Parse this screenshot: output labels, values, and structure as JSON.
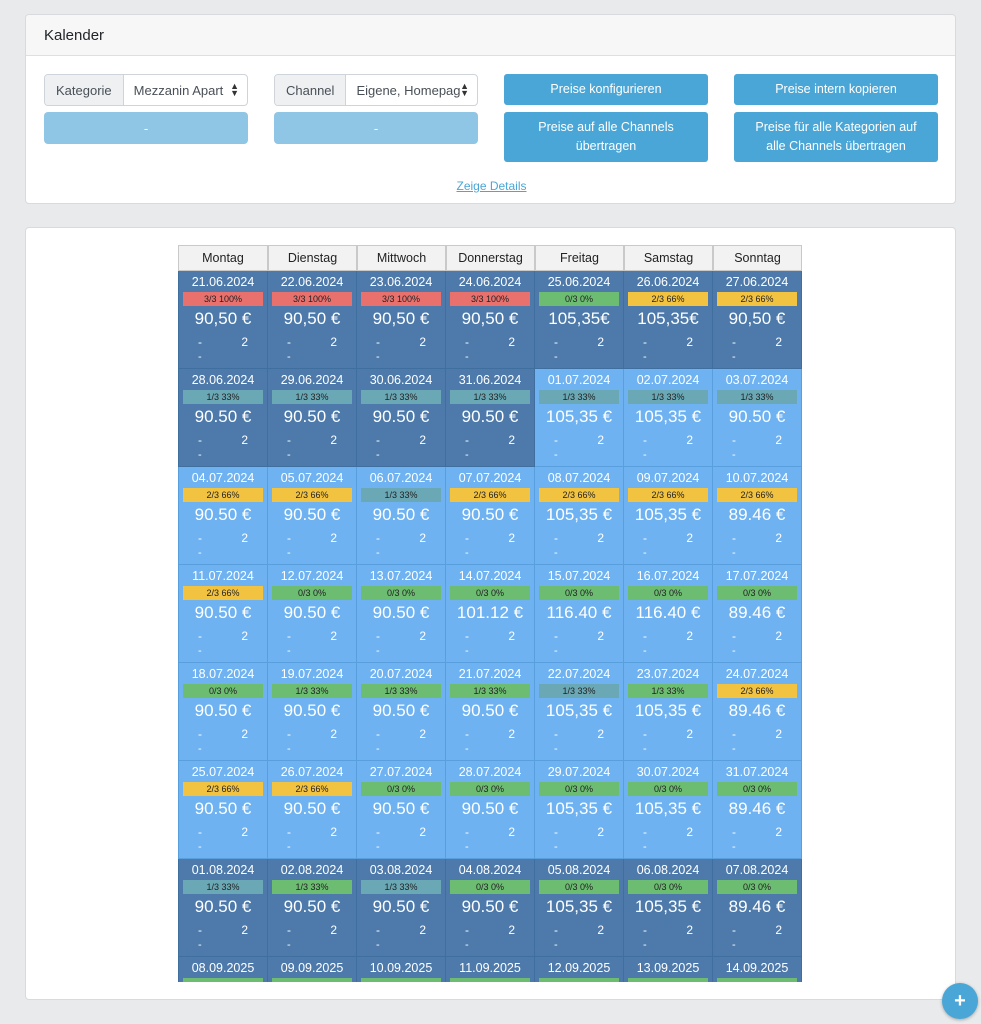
{
  "header": {
    "title": "Kalender"
  },
  "filters": {
    "kategorie_label": "Kategorie",
    "kategorie_value": "Mezzanin Apart",
    "channel_label": "Channel",
    "channel_value": "Eigene, Homepag",
    "dash_left": "-",
    "dash_right": "-"
  },
  "buttons": {
    "preise_konfigurieren": "Preise konfigurieren",
    "preise_intern_kopieren": "Preise intern kopieren",
    "preise_alle_channels": "Preise auf alle Channels übertragen",
    "preise_alle_kategorien": "Preise für alle Kategorien auf alle Channels übertragen",
    "zeige_details": "Zeige Details"
  },
  "calendar": {
    "weekdays": [
      "Montag",
      "Dienstag",
      "Mittwoch",
      "Donnerstag",
      "Freitag",
      "Samstag",
      "Sonntag"
    ],
    "weeks": [
      [
        {
          "date": "21.06.2024",
          "occ": "3/3 100%",
          "occ_color": "red",
          "price": "90,50 €",
          "dash": "-",
          "num": "2",
          "sub": "-",
          "tone": "dark"
        },
        {
          "date": "22.06.2024",
          "occ": "3/3 100%",
          "occ_color": "red",
          "price": "90,50 €",
          "dash": "-",
          "num": "2",
          "sub": "-",
          "tone": "dark"
        },
        {
          "date": "23.06.2024",
          "occ": "3/3 100%",
          "occ_color": "red",
          "price": "90,50 €",
          "dash": "-",
          "num": "2",
          "sub": "-",
          "tone": "dark"
        },
        {
          "date": "24.06.2024",
          "occ": "3/3 100%",
          "occ_color": "red",
          "price": "90,50 €",
          "dash": "-",
          "num": "2",
          "sub": "-",
          "tone": "dark"
        },
        {
          "date": "25.06.2024",
          "occ": "0/3 0%",
          "occ_color": "green",
          "price": "105,35€",
          "dash": "-",
          "num": "2",
          "sub": "-",
          "tone": "dark"
        },
        {
          "date": "26.06.2024",
          "occ": "2/3 66%",
          "occ_color": "yellow",
          "price": "105,35€",
          "dash": "-",
          "num": "2",
          "sub": "-",
          "tone": "dark"
        },
        {
          "date": "27.06.2024",
          "occ": "2/3 66%",
          "occ_color": "yellow",
          "price": "90,50 €",
          "dash": "-",
          "num": "2",
          "sub": "-",
          "tone": "dark"
        }
      ],
      [
        {
          "date": "28.06.2024",
          "occ": "1/3 33%",
          "occ_color": "teal",
          "price": "90.50 €",
          "dash": "-",
          "num": "2",
          "sub": "-",
          "tone": "dark"
        },
        {
          "date": "29.06.2024",
          "occ": "1/3 33%",
          "occ_color": "teal",
          "price": "90.50 €",
          "dash": "-",
          "num": "2",
          "sub": "-",
          "tone": "dark"
        },
        {
          "date": "30.06.2024",
          "occ": "1/3 33%",
          "occ_color": "teal",
          "price": "90.50 €",
          "dash": "-",
          "num": "2",
          "sub": "-",
          "tone": "dark"
        },
        {
          "date": "31.06.2024",
          "occ": "1/3 33%",
          "occ_color": "teal",
          "price": "90.50 €",
          "dash": "-",
          "num": "2",
          "sub": "-",
          "tone": "dark"
        },
        {
          "date": "01.07.2024",
          "occ": "1/3 33%",
          "occ_color": "teal",
          "price": "105,35 €",
          "dash": "-",
          "num": "2",
          "sub": "-",
          "tone": "light"
        },
        {
          "date": "02.07.2024",
          "occ": "1/3 33%",
          "occ_color": "teal",
          "price": "105,35 €",
          "dash": "-",
          "num": "2",
          "sub": "-",
          "tone": "light"
        },
        {
          "date": "03.07.2024",
          "occ": "1/3 33%",
          "occ_color": "teal",
          "price": "90.50 €",
          "dash": "-",
          "num": "2",
          "sub": "-",
          "tone": "light"
        }
      ],
      [
        {
          "date": "04.07.2024",
          "occ": "2/3 66%",
          "occ_color": "yellow",
          "price": "90.50 €",
          "dash": "-",
          "num": "2",
          "sub": "-",
          "tone": "light"
        },
        {
          "date": "05.07.2024",
          "occ": "2/3 66%",
          "occ_color": "yellow",
          "price": "90.50 €",
          "dash": "-",
          "num": "2",
          "sub": "-",
          "tone": "light"
        },
        {
          "date": "06.07.2024",
          "occ": "1/3 33%",
          "occ_color": "teal",
          "price": "90.50 €",
          "dash": "-",
          "num": "2",
          "sub": "-",
          "tone": "light"
        },
        {
          "date": "07.07.2024",
          "occ": "2/3 66%",
          "occ_color": "yellow",
          "price": "90.50 €",
          "dash": "-",
          "num": "2",
          "sub": "-",
          "tone": "light"
        },
        {
          "date": "08.07.2024",
          "occ": "2/3 66%",
          "occ_color": "yellow",
          "price": "105,35 €",
          "dash": "-",
          "num": "2",
          "sub": "-",
          "tone": "light"
        },
        {
          "date": "09.07.2024",
          "occ": "2/3 66%",
          "occ_color": "yellow",
          "price": "105,35 €",
          "dash": "-",
          "num": "2",
          "sub": "-",
          "tone": "light"
        },
        {
          "date": "10.07.2024",
          "occ": "2/3 66%",
          "occ_color": "yellow",
          "price": "89.46 €",
          "dash": "-",
          "num": "2",
          "sub": "-",
          "tone": "light"
        }
      ],
      [
        {
          "date": "11.07.2024",
          "occ": "2/3 66%",
          "occ_color": "yellow",
          "price": "90.50 €",
          "dash": "-",
          "num": "2",
          "sub": "-",
          "tone": "light"
        },
        {
          "date": "12.07.2024",
          "occ": "0/3 0%",
          "occ_color": "green",
          "price": "90.50 €",
          "dash": "-",
          "num": "2",
          "sub": "-",
          "tone": "light"
        },
        {
          "date": "13.07.2024",
          "occ": "0/3 0%",
          "occ_color": "green",
          "price": "90.50 €",
          "dash": "-",
          "num": "2",
          "sub": "-",
          "tone": "light"
        },
        {
          "date": "14.07.2024",
          "occ": "0/3 0%",
          "occ_color": "green",
          "price": "101.12 €",
          "dash": "-",
          "num": "2",
          "sub": "-",
          "tone": "light"
        },
        {
          "date": "15.07.2024",
          "occ": "0/3 0%",
          "occ_color": "green",
          "price": "116.40 €",
          "dash": "-",
          "num": "2",
          "sub": "-",
          "tone": "light"
        },
        {
          "date": "16.07.2024",
          "occ": "0/3 0%",
          "occ_color": "green",
          "price": "116.40 €",
          "dash": "-",
          "num": "2",
          "sub": "-",
          "tone": "light"
        },
        {
          "date": "17.07.2024",
          "occ": "0/3 0%",
          "occ_color": "green",
          "price": "89.46 €",
          "dash": "-",
          "num": "2",
          "sub": "-",
          "tone": "light"
        }
      ],
      [
        {
          "date": "18.07.2024",
          "occ": "0/3 0%",
          "occ_color": "green",
          "price": "90.50 €",
          "dash": "-",
          "num": "2",
          "sub": "-",
          "tone": "light"
        },
        {
          "date": "19.07.2024",
          "occ": "1/3 33%",
          "occ_color": "green",
          "price": "90.50 €",
          "dash": "-",
          "num": "2",
          "sub": "-",
          "tone": "light"
        },
        {
          "date": "20.07.2024",
          "occ": "1/3 33%",
          "occ_color": "green",
          "price": "90.50 €",
          "dash": "-",
          "num": "2",
          "sub": "-",
          "tone": "light"
        },
        {
          "date": "21.07.2024",
          "occ": "1/3 33%",
          "occ_color": "green",
          "price": "90.50 €",
          "dash": "-",
          "num": "2",
          "sub": "-",
          "tone": "light"
        },
        {
          "date": "22.07.2024",
          "occ": "1/3 33%",
          "occ_color": "teal",
          "price": "105,35 €",
          "dash": "-",
          "num": "2",
          "sub": "-",
          "tone": "light"
        },
        {
          "date": "23.07.2024",
          "occ": "1/3 33%",
          "occ_color": "green",
          "price": "105,35 €",
          "dash": "-",
          "num": "2",
          "sub": "-",
          "tone": "light"
        },
        {
          "date": "24.07.2024",
          "occ": "2/3 66%",
          "occ_color": "yellow",
          "price": "89.46 €",
          "dash": "-",
          "num": "2",
          "sub": "-",
          "tone": "light"
        }
      ],
      [
        {
          "date": "25.07.2024",
          "occ": "2/3 66%",
          "occ_color": "yellow",
          "price": "90.50 €",
          "dash": "-",
          "num": "2",
          "sub": "-",
          "tone": "light"
        },
        {
          "date": "26.07.2024",
          "occ": "2/3 66%",
          "occ_color": "yellow",
          "price": "90.50 €",
          "dash": "-",
          "num": "2",
          "sub": "-",
          "tone": "light"
        },
        {
          "date": "27.07.2024",
          "occ": "0/3 0%",
          "occ_color": "green",
          "price": "90.50 €",
          "dash": "-",
          "num": "2",
          "sub": "-",
          "tone": "light"
        },
        {
          "date": "28.07.2024",
          "occ": "0/3 0%",
          "occ_color": "green",
          "price": "90.50 €",
          "dash": "-",
          "num": "2",
          "sub": "-",
          "tone": "light"
        },
        {
          "date": "29.07.2024",
          "occ": "0/3 0%",
          "occ_color": "green",
          "price": "105,35 €",
          "dash": "-",
          "num": "2",
          "sub": "-",
          "tone": "light"
        },
        {
          "date": "30.07.2024",
          "occ": "0/3 0%",
          "occ_color": "green",
          "price": "105,35 €",
          "dash": "-",
          "num": "2",
          "sub": "-",
          "tone": "light"
        },
        {
          "date": "31.07.2024",
          "occ": "0/3 0%",
          "occ_color": "green",
          "price": "89.46 €",
          "dash": "-",
          "num": "2",
          "sub": "-",
          "tone": "light"
        }
      ],
      [
        {
          "date": "01.08.2024",
          "occ": "1/3 33%",
          "occ_color": "teal",
          "price": "90.50 €",
          "dash": "-",
          "num": "2",
          "sub": "-",
          "tone": "dark"
        },
        {
          "date": "02.08.2024",
          "occ": "1/3 33%",
          "occ_color": "green",
          "price": "90.50 €",
          "dash": "-",
          "num": "2",
          "sub": "-",
          "tone": "dark"
        },
        {
          "date": "03.08.2024",
          "occ": "1/3 33%",
          "occ_color": "teal",
          "price": "90.50 €",
          "dash": "-",
          "num": "2",
          "sub": "-",
          "tone": "dark"
        },
        {
          "date": "04.08.2024",
          "occ": "0/3 0%",
          "occ_color": "green",
          "price": "90.50 €",
          "dash": "-",
          "num": "2",
          "sub": "-",
          "tone": "dark"
        },
        {
          "date": "05.08.2024",
          "occ": "0/3 0%",
          "occ_color": "green",
          "price": "105,35 €",
          "dash": "-",
          "num": "2",
          "sub": "-",
          "tone": "dark"
        },
        {
          "date": "06.08.2024",
          "occ": "0/3 0%",
          "occ_color": "green",
          "price": "105,35 €",
          "dash": "-",
          "num": "2",
          "sub": "-",
          "tone": "dark"
        },
        {
          "date": "07.08.2024",
          "occ": "0/3 0%",
          "occ_color": "green",
          "price": "89.46 €",
          "dash": "-",
          "num": "2",
          "sub": "-",
          "tone": "dark"
        }
      ],
      [
        {
          "date": "08.09.2025",
          "occ": "",
          "occ_color": "green",
          "price": "",
          "dash": "",
          "num": "",
          "sub": "",
          "tone": "dark"
        },
        {
          "date": "09.09.2025",
          "occ": "",
          "occ_color": "green",
          "price": "",
          "dash": "",
          "num": "",
          "sub": "",
          "tone": "dark"
        },
        {
          "date": "10.09.2025",
          "occ": "",
          "occ_color": "green",
          "price": "",
          "dash": "",
          "num": "",
          "sub": "",
          "tone": "dark"
        },
        {
          "date": "11.09.2025",
          "occ": "",
          "occ_color": "green",
          "price": "",
          "dash": "",
          "num": "",
          "sub": "",
          "tone": "dark"
        },
        {
          "date": "12.09.2025",
          "occ": "",
          "occ_color": "green",
          "price": "",
          "dash": "",
          "num": "",
          "sub": "",
          "tone": "dark"
        },
        {
          "date": "13.09.2025",
          "occ": "",
          "occ_color": "green",
          "price": "",
          "dash": "",
          "num": "",
          "sub": "",
          "tone": "dark"
        },
        {
          "date": "14.09.2025",
          "occ": "",
          "occ_color": "green",
          "price": "",
          "dash": "",
          "num": "",
          "sub": "",
          "tone": "dark"
        }
      ]
    ]
  },
  "fab": {
    "label": "+"
  }
}
